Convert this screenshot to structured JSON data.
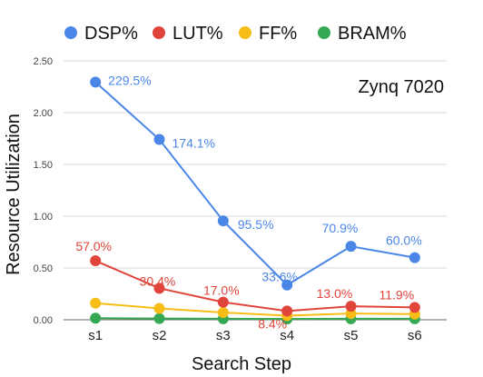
{
  "chart_data": {
    "type": "line",
    "title": "",
    "annotation": "Zynq 7020",
    "xlabel": "Search Step",
    "ylabel": "Resource Utilization",
    "categories": [
      "s1",
      "s2",
      "s3",
      "s4",
      "s5",
      "s6"
    ],
    "ylim": [
      0,
      2.5
    ],
    "yticks": [
      "0.00",
      "0.50",
      "1.00",
      "1.50",
      "2.00",
      "2.50"
    ],
    "grid": "horizontal",
    "legend_position": "top",
    "series": [
      {
        "name": "DSP%",
        "color": "#4a86e8",
        "values": [
          2.295,
          1.741,
          0.955,
          0.336,
          0.709,
          0.6
        ],
        "labels": [
          "229.5%",
          "174.1%",
          "95.5%",
          "33.6%",
          "70.9%",
          "60.0%"
        ]
      },
      {
        "name": "LUT%",
        "color": "#e0443a",
        "values": [
          0.57,
          0.304,
          0.17,
          0.084,
          0.13,
          0.119
        ],
        "labels": [
          "57.0%",
          "30.4%",
          "17.0%",
          "8.4%",
          "13.0%",
          "11.9%"
        ]
      },
      {
        "name": "FF%",
        "color": "#f6bd16",
        "values": [
          0.16,
          0.11,
          0.07,
          0.04,
          0.06,
          0.055
        ],
        "labels": []
      },
      {
        "name": "BRAM%",
        "color": "#34a853",
        "values": [
          0.015,
          0.012,
          0.01,
          0.008,
          0.01,
          0.01
        ],
        "labels": []
      }
    ]
  }
}
